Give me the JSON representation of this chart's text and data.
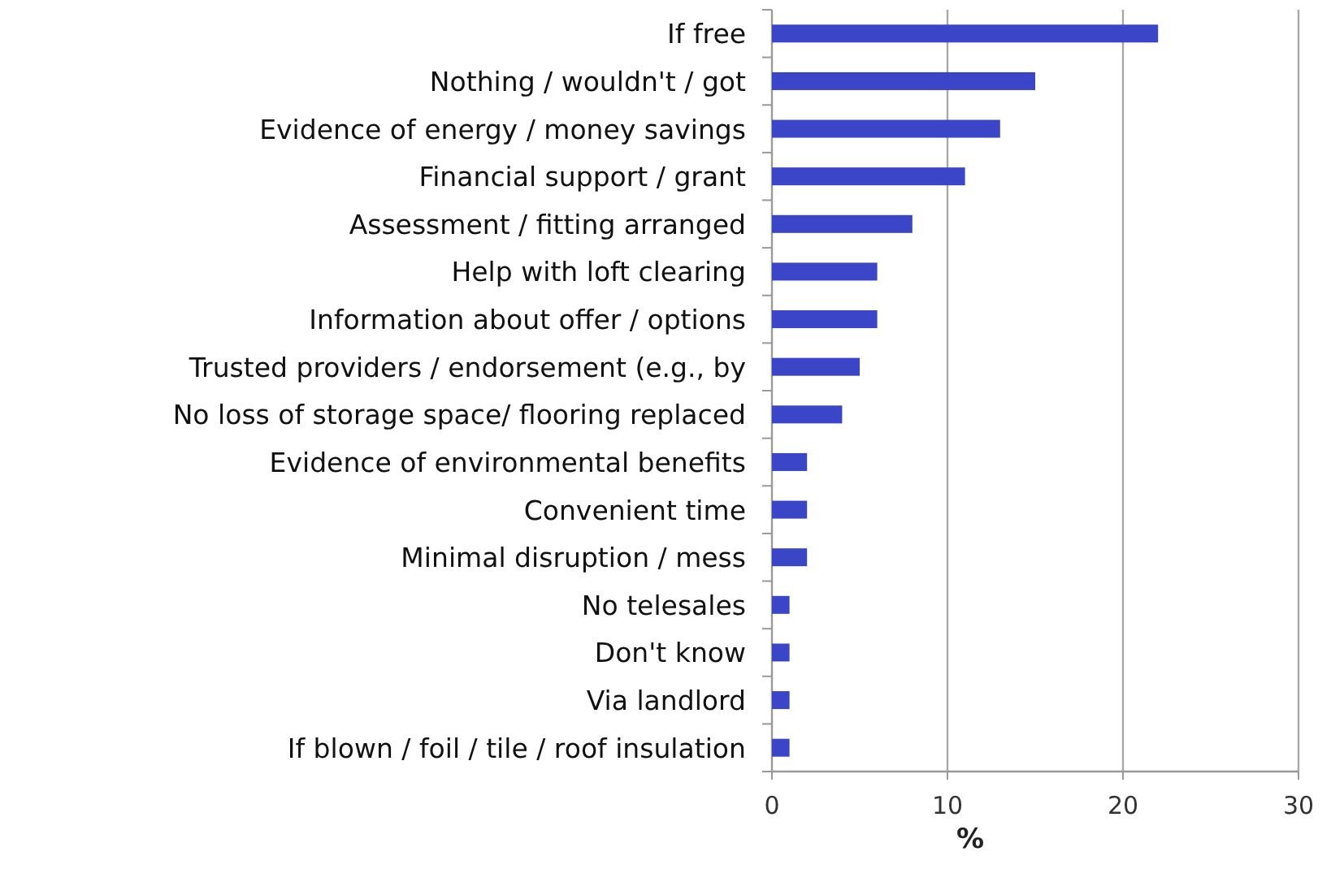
{
  "chart_data": {
    "type": "bar",
    "orientation": "horizontal",
    "xlabel": "%",
    "categories": [
      "If free",
      "Nothing / wouldn't / got",
      "Evidence of energy / money savings",
      "Financial support / grant",
      "Assessment / fitting arranged",
      "Help with loft clearing",
      "Information about offer / options",
      "Trusted providers / endorsement (e.g., by",
      "No loss of storage space/ flooring replaced",
      "Evidence of environmental benefits",
      "Convenient time",
      "Minimal disruption / mess",
      "No telesales",
      "Don't know",
      "Via landlord",
      "If blown / foil / tile / roof insulation"
    ],
    "values": [
      22,
      15,
      13,
      11,
      8,
      6,
      6,
      5,
      4,
      2,
      2,
      2,
      1,
      1,
      1,
      1
    ],
    "color": "#3b45c8",
    "xlim": [
      0,
      30
    ],
    "xticks": [
      0,
      10,
      20,
      30
    ],
    "grid": "x"
  }
}
